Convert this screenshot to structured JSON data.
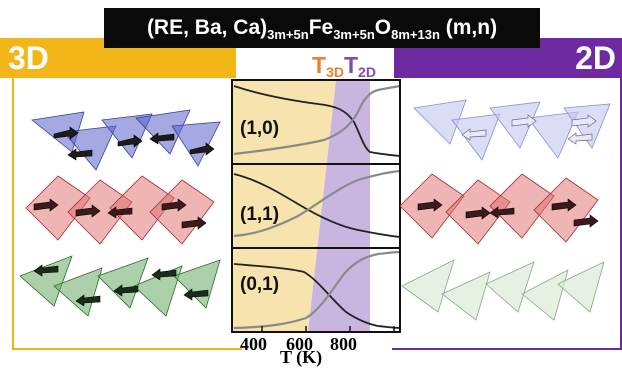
{
  "title": {
    "prefix": "(RE, Ba, Ca)",
    "sub1": "3m+5n",
    "mid1": "Fe",
    "sub2": "3m+5n",
    "mid2": "O",
    "sub3": "8m+13n",
    "suffix": " (m,n)"
  },
  "left_label": "3D",
  "right_label": "2D",
  "transition_labels": {
    "t3d_main": "T",
    "t3d_sub": "3D",
    "t2d_main": "T",
    "t2d_sub": "2D"
  },
  "panels": [
    {
      "label": "(1,0)"
    },
    {
      "label": "(1,1)"
    },
    {
      "label": "(0,1)"
    }
  ],
  "x_axis": {
    "label": "T (K)",
    "ticks": [
      "400",
      "600",
      "800"
    ]
  },
  "colors": {
    "yellow": "#f2b619",
    "purple": "#6e2aa0",
    "t3d": "#e8822a",
    "t2d": "#7a4fb0",
    "region3d": "#f7e3ae",
    "region2d": "#c9b6e0",
    "blue_poly": "#5b63c9",
    "red_poly": "#e06a6a",
    "green_poly": "#67a962"
  }
}
